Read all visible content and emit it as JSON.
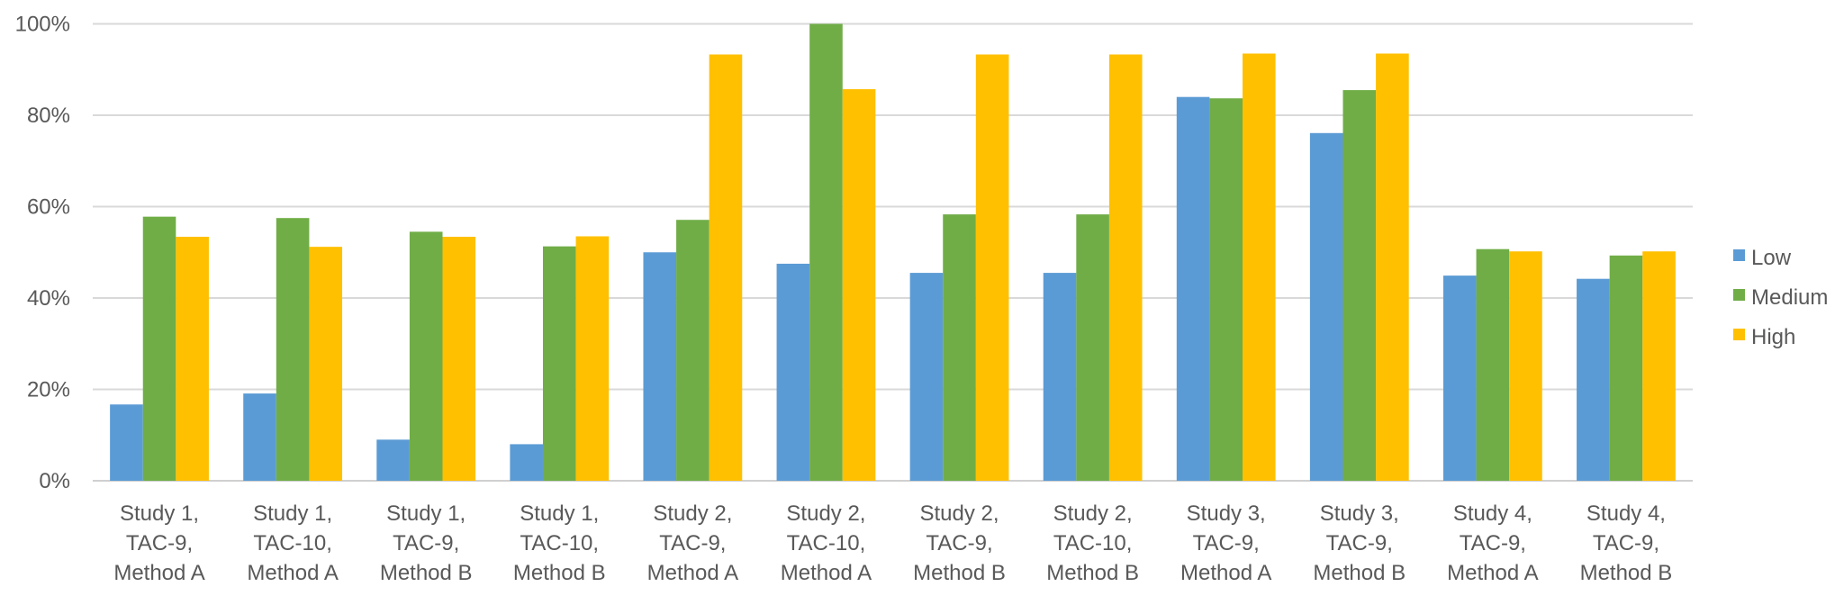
{
  "chart_data": {
    "type": "bar",
    "title": "",
    "xlabel": "",
    "ylabel": "",
    "ylim": [
      0,
      100
    ],
    "yticks": [
      "0%",
      "20%",
      "40%",
      "60%",
      "80%",
      "100%"
    ],
    "grid": true,
    "legend_position": "right",
    "categories": [
      [
        "Study 1,",
        "TAC-9,",
        "Method A"
      ],
      [
        "Study 1,",
        "TAC-10,",
        "Method A"
      ],
      [
        "Study 1,",
        "TAC-9,",
        "Method B"
      ],
      [
        "Study 1,",
        "TAC-10,",
        "Method B"
      ],
      [
        "Study 2,",
        "TAC-9,",
        "Method A"
      ],
      [
        "Study 2,",
        "TAC-10,",
        "Method A"
      ],
      [
        "Study 2,",
        "TAC-9,",
        "Method B"
      ],
      [
        "Study 2,",
        "TAC-10,",
        "Method B"
      ],
      [
        "Study 3,",
        "TAC-9,",
        "Method A"
      ],
      [
        "Study 3,",
        "TAC-9,",
        "Method B"
      ],
      [
        "Study 4,",
        "TAC-9,",
        "Method A"
      ],
      [
        "Study 4,",
        "TAC-9,",
        "Method B"
      ]
    ],
    "series": [
      {
        "name": "Low",
        "color": "#5B9BD5",
        "values": [
          16.7,
          19.1,
          9.0,
          8.0,
          50.0,
          47.5,
          45.5,
          45.5,
          84.0,
          76.1,
          44.9,
          44.2
        ]
      },
      {
        "name": "Medium",
        "color": "#70AD47",
        "values": [
          57.8,
          57.5,
          54.5,
          51.3,
          57.1,
          100.0,
          58.3,
          58.3,
          83.7,
          85.5,
          50.7,
          49.3
        ]
      },
      {
        "name": "High",
        "color": "#FFC000",
        "values": [
          53.4,
          51.2,
          53.4,
          53.5,
          93.3,
          85.7,
          93.3,
          93.3,
          93.5,
          93.5,
          50.2,
          50.2
        ]
      }
    ]
  }
}
